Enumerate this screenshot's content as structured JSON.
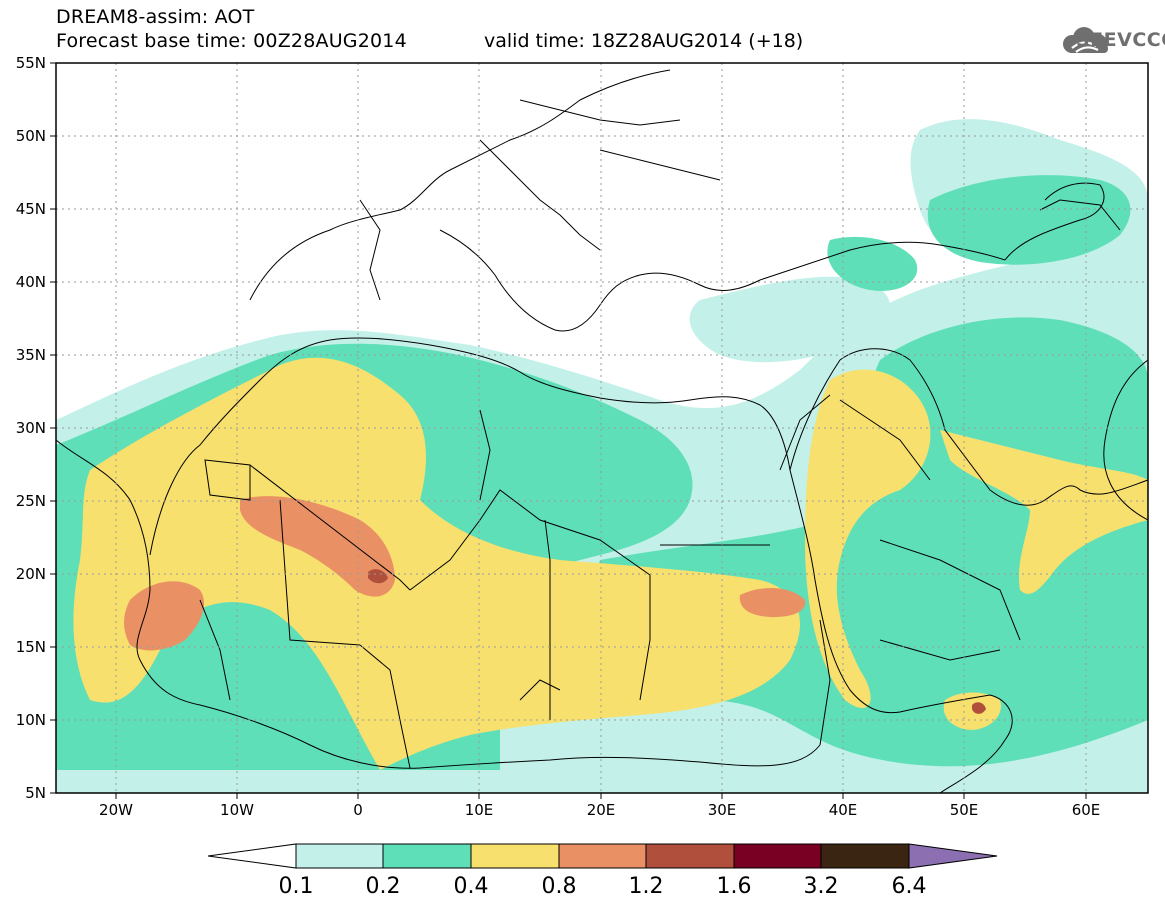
{
  "header": {
    "title": "DREAM8-assim: AOT",
    "base_time": "Forecast base time: 00Z28AUG2014",
    "valid_time": "valid time: 18Z28AUG2014 (+18)",
    "logo": "SEEVCCC"
  },
  "axes": {
    "lat_labels": [
      "55N",
      "50N",
      "45N",
      "40N",
      "35N",
      "30N",
      "25N",
      "20N",
      "15N",
      "10N",
      "5N"
    ],
    "lon_labels": [
      "20W",
      "10W",
      "0",
      "10E",
      "20E",
      "30E",
      "40E",
      "50E",
      "60E"
    ]
  },
  "colorbar": {
    "labels": [
      "0.1",
      "0.2",
      "0.4",
      "0.8",
      "1.2",
      "1.6",
      "3.2",
      "6.4"
    ],
    "colors": [
      "#ffffff",
      "#c3f1e9",
      "#5fdfb8",
      "#f7e06e",
      "#e99164",
      "#b04f3c",
      "#7a0023",
      "#3a2412",
      "#8b6fb0"
    ]
  },
  "legend_colors": {
    "land": "#ffffff",
    "border": "#000000",
    "gridline": "#9a9a9a"
  }
}
